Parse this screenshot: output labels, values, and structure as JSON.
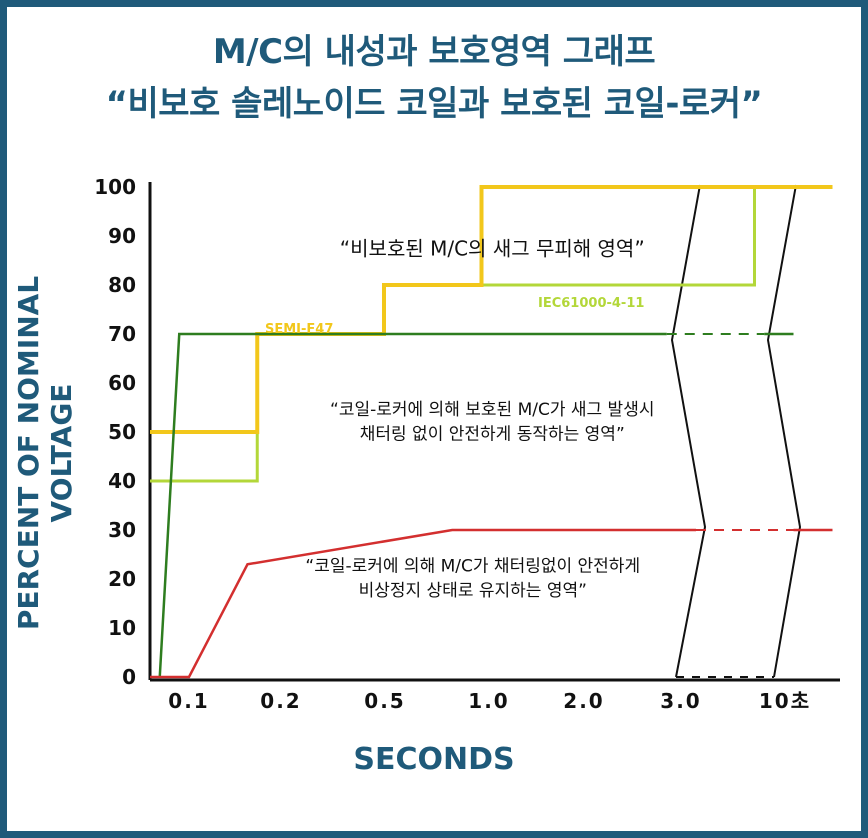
{
  "title_line1": "M/C의 내성과 보호영역 그래프",
  "title_line2": "“비보호 솔레노이드 코일과 보호된 코일-로커”",
  "chart_data": {
    "type": "line",
    "xlabel": "SECONDS",
    "ylabel": "PERCENT OF NOMINAL VOLTAGE",
    "categories": [
      "0.1",
      "0.2",
      "0.5",
      "1.0",
      "2.0",
      "3.0",
      "10초"
    ],
    "yticks": [
      0,
      10,
      20,
      30,
      40,
      50,
      60,
      70,
      80,
      90,
      100
    ],
    "ylim": [
      0,
      100
    ],
    "series": [
      {
        "name": "SEMI-F47",
        "color": "#f2c71b",
        "points": [
          [
            0,
            50
          ],
          [
            1.1,
            50
          ],
          [
            1.1,
            70
          ],
          [
            2.4,
            70
          ],
          [
            2.4,
            80
          ],
          [
            3.4,
            80
          ],
          [
            3.4,
            100
          ],
          [
            7.0,
            100
          ]
        ]
      },
      {
        "name": "IEC61000-4-11",
        "color": "#b3d739",
        "points": [
          [
            0,
            40
          ],
          [
            1.1,
            40
          ],
          [
            1.1,
            70
          ],
          [
            2.4,
            70
          ],
          [
            2.4,
            80
          ],
          [
            6.2,
            80
          ],
          [
            6.2,
            100
          ],
          [
            7.0,
            100
          ]
        ]
      },
      {
        "color": "#2e7d1f",
        "points": [
          [
            0.1,
            0
          ],
          [
            0.3,
            70
          ],
          [
            5.3,
            70
          ]
        ],
        "dashed_points": [
          [
            5.3,
            70
          ],
          [
            6.3,
            70
          ]
        ],
        "tail_points": [
          [
            6.3,
            70
          ],
          [
            6.6,
            70
          ]
        ]
      },
      {
        "color": "#d32f2f",
        "points": [
          [
            0,
            0
          ],
          [
            0.4,
            0
          ],
          [
            1.0,
            23
          ],
          [
            3.1,
            30
          ],
          [
            5.6,
            30
          ]
        ],
        "dashed_points": [
          [
            5.6,
            30
          ],
          [
            6.6,
            30
          ]
        ],
        "tail_points": [
          [
            6.6,
            30
          ],
          [
            7.0,
            30
          ]
        ]
      }
    ],
    "annotations": [
      {
        "text": "“비보호된 M/C의 새그 무피해 영역”",
        "x": 3.1,
        "y": 86
      },
      {
        "text": "“코일-로커에 의해 보호된 M/C가 새그 발생시",
        "x": 3.1,
        "y": 53.5
      },
      {
        "text": "채터링 없이 안전하게 동작하는 영역”",
        "x": 3.1,
        "y": 48.5
      },
      {
        "text": "“코일-로커에 의해 M/C가 채터링없이 안전하게",
        "x": 2.9,
        "y": 21.5
      },
      {
        "text": "비상정지 상태로 유지하는 영역”",
        "x": 2.9,
        "y": 16.5
      }
    ],
    "labels": {
      "semi": "SEMI-F47",
      "iec": "IEC61000-4-11"
    },
    "grid": false
  }
}
